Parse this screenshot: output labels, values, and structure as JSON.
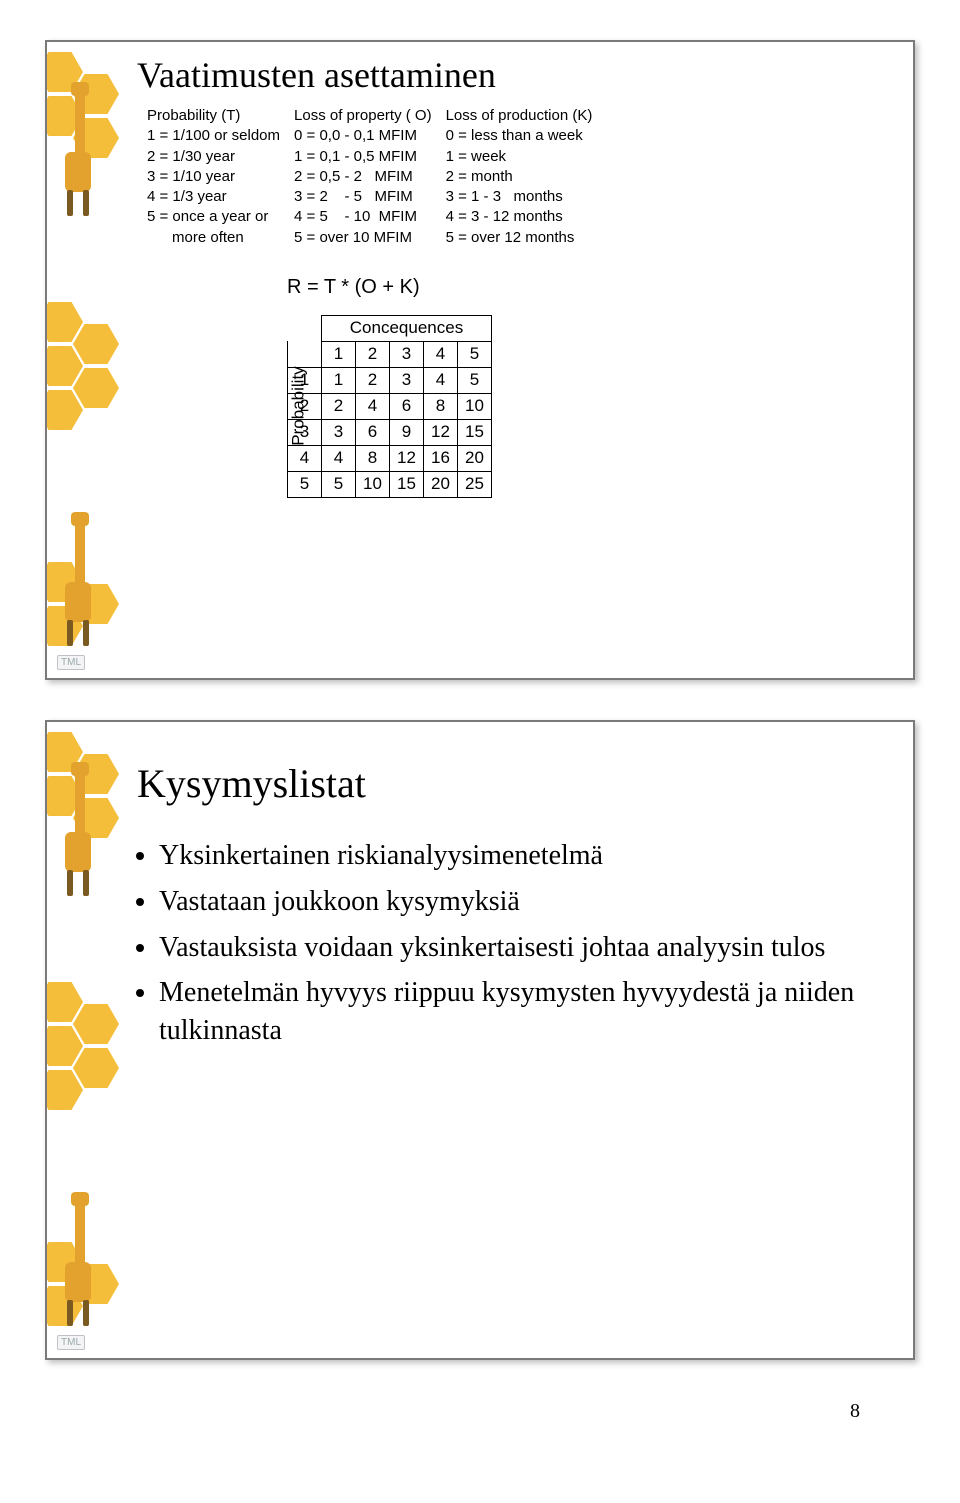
{
  "page_number": "8",
  "decoration": {
    "hex_color": "#f5be3a",
    "giraffe_color": "#e3a22e"
  },
  "slide1": {
    "title": "Vaatimusten asettaminen",
    "legend": {
      "probability": {
        "header": "Probability (T)",
        "lines": [
          "1 = 1/100 or seldom",
          "2 = 1/30 year",
          "3 = 1/10 year",
          "4 = 1/3 year",
          "5 = once a year or",
          "      more often"
        ]
      },
      "loss_property": {
        "header": "Loss of property ( O)",
        "lines": [
          "0 = 0,0 - 0,1 MFIM",
          "1 = 0,1 - 0,5 MFIM",
          "2 = 0,5 - 2   MFIM",
          "3 = 2    - 5   MFIM",
          "4 = 5    - 10  MFIM",
          "5 = over 10 MFIM"
        ]
      },
      "loss_production": {
        "header": "Loss of production (K)",
        "lines": [
          "0 = less than a week",
          "1 = week",
          "2 = month",
          "3 = 1 - 3   months",
          "4 = 3 - 12 months",
          "5 = over 12 months"
        ]
      }
    },
    "formula": "R = T * (O + K)",
    "matrix": {
      "top_label": "Concequences",
      "side_label": "Probability",
      "col_headers": [
        "1",
        "2",
        "3",
        "4",
        "5"
      ],
      "row_headers": [
        "1",
        "2",
        "3",
        "4",
        "5"
      ],
      "rows": [
        [
          "1",
          "2",
          "3",
          "4",
          "5"
        ],
        [
          "2",
          "4",
          "6",
          "8",
          "10"
        ],
        [
          "3",
          "6",
          "9",
          "12",
          "15"
        ],
        [
          "4",
          "8",
          "12",
          "16",
          "20"
        ],
        [
          "5",
          "10",
          "15",
          "20",
          "25"
        ]
      ]
    },
    "logo_text": "TML"
  },
  "slide2": {
    "title": "Kysymyslistat",
    "bullets": [
      "Yksinkertainen riskianalyysimenetelmä",
      "Vastataan joukkoon kysymyksiä",
      "Vastauksista voidaan yksinkertaisesti johtaa analyysin tulos",
      "Menetelmän hyvyys riippuu kysymysten hyvyydestä ja niiden tulkinnasta"
    ],
    "logo_text": "TML"
  }
}
